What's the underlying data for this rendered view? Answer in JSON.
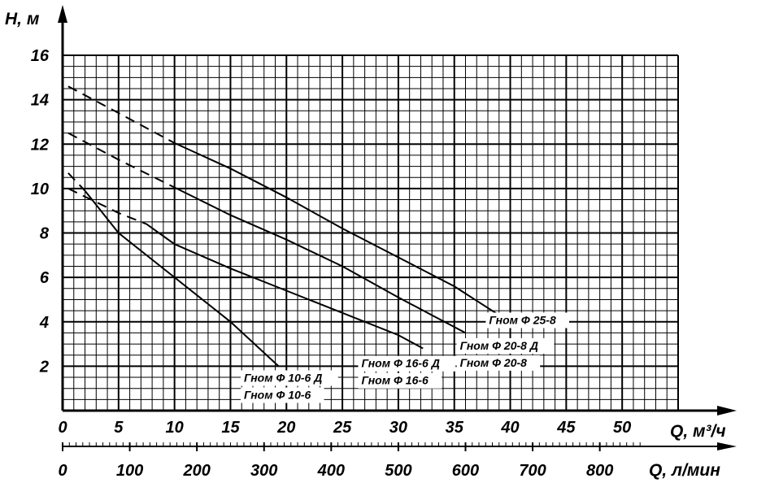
{
  "chart_data": {
    "type": "line",
    "ylabel": "H, м",
    "xlabel": "Q, м³/ч",
    "xlabel_secondary": "Q, л/мин",
    "xlim": [
      0,
      55
    ],
    "ylim": [
      0,
      17
    ],
    "x_ticks": [
      "0",
      "5",
      "10",
      "15",
      "20",
      "25",
      "30",
      "35",
      "40",
      "45",
      "50"
    ],
    "y_ticks": [
      "2",
      "4",
      "6",
      "8",
      "10",
      "12",
      "14",
      "16"
    ],
    "x2_ticks": [
      {
        "q": 0,
        "label": "0"
      },
      {
        "q": 6,
        "label": "100"
      },
      {
        "q": 12,
        "label": "200"
      },
      {
        "q": 18,
        "label": "300"
      },
      {
        "q": 24,
        "label": "400"
      },
      {
        "q": 30,
        "label": "500"
      },
      {
        "q": 36,
        "label": "600"
      },
      {
        "q": 42,
        "label": "700"
      },
      {
        "q": 48,
        "label": "800"
      }
    ],
    "grid": true,
    "series": [
      {
        "names": [
          "Гном Ф 25-8"
        ],
        "dashed": [
          [
            0.5,
            14.6
          ],
          [
            5,
            13.4
          ],
          [
            10,
            12.05
          ]
        ],
        "solid": [
          [
            10,
            12.05
          ],
          [
            15,
            10.9
          ],
          [
            20,
            9.6
          ],
          [
            25,
            8.2
          ],
          [
            30,
            6.9
          ],
          [
            35,
            5.6
          ],
          [
            39,
            4.3
          ]
        ],
        "label_at": [
          38.1,
          3.9
        ]
      },
      {
        "names": [
          "Гном Ф 20-8 Д",
          "Гном Ф 20-8"
        ],
        "dashed": [
          [
            0.5,
            12.5
          ],
          [
            5,
            11.3
          ],
          [
            10,
            10.05
          ]
        ],
        "solid": [
          [
            10,
            10.05
          ],
          [
            15,
            8.8
          ],
          [
            20,
            7.7
          ],
          [
            25,
            6.5
          ],
          [
            30,
            5.1
          ],
          [
            33,
            4.3
          ],
          [
            36,
            3.5
          ]
        ],
        "label_at": [
          35.5,
          2.75
        ]
      },
      {
        "names": [
          "Гном Ф 16-6 Д",
          "Гном Ф 16-6"
        ],
        "dashed": [
          [
            0.5,
            10.0
          ],
          [
            5,
            8.9
          ],
          [
            7.5,
            8.4
          ]
        ],
        "solid": [
          [
            7.5,
            8.4
          ],
          [
            10,
            7.5
          ],
          [
            15,
            6.4
          ],
          [
            20,
            5.4
          ],
          [
            25,
            4.4
          ],
          [
            30,
            3.4
          ],
          [
            32.2,
            2.8
          ]
        ],
        "label_at": [
          26.7,
          1.95
        ]
      },
      {
        "names": [
          "Гном Ф 10-6 Д",
          "Гном Ф 10-6"
        ],
        "dashed": [
          [
            0.5,
            10.7
          ],
          [
            2,
            9.9
          ]
        ],
        "solid": [
          [
            2,
            9.9
          ],
          [
            5,
            8.0
          ],
          [
            10,
            6.0
          ],
          [
            15,
            4.0
          ],
          [
            19.3,
            2.0
          ]
        ],
        "label_at": [
          16.2,
          1.3
        ]
      }
    ]
  }
}
